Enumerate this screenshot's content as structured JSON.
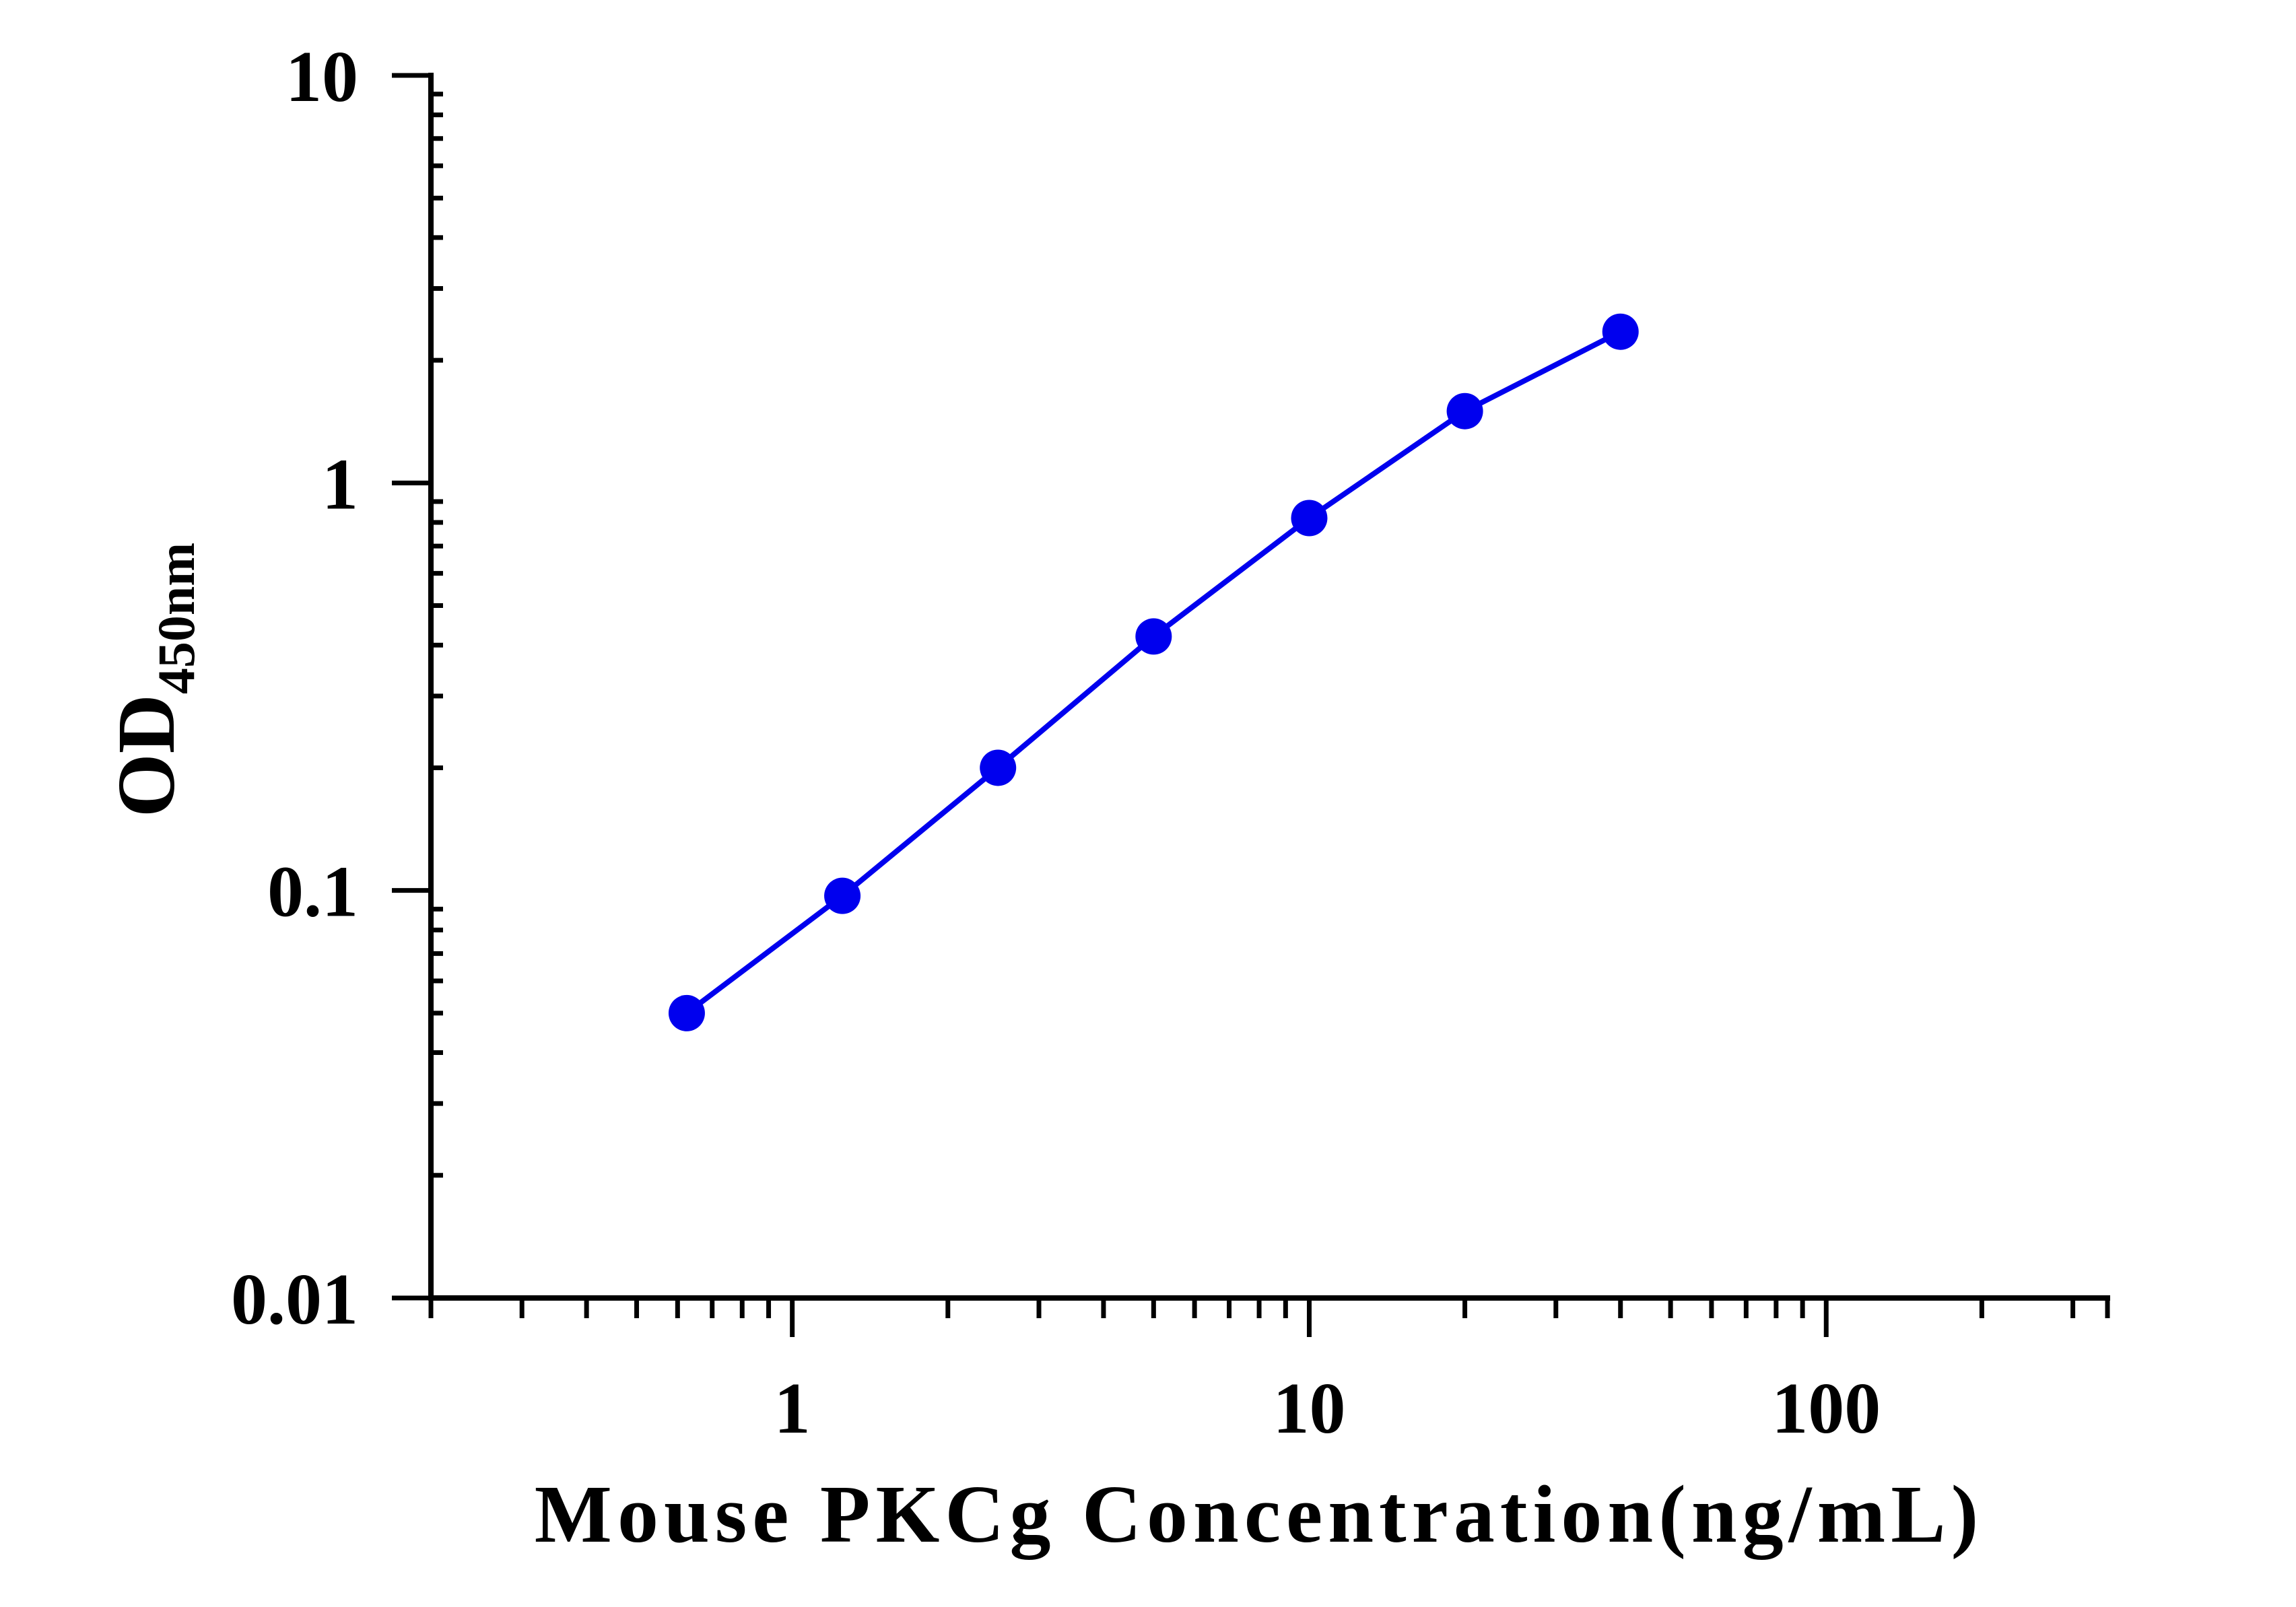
{
  "chart_data": {
    "type": "line",
    "title": "",
    "xlabel": "Mouse PKCg Concentration(ng/mL)",
    "ylabel": {
      "main": "OD",
      "subscript": "450nm"
    },
    "xscale": "log",
    "yscale": "log",
    "xlim": [
      0.2,
      350
    ],
    "ylim": [
      0.01,
      10
    ],
    "x_ticks": [
      {
        "value": 1,
        "label": "1"
      },
      {
        "value": 10,
        "label": "10"
      },
      {
        "value": 100,
        "label": "100"
      }
    ],
    "y_ticks": [
      {
        "value": 0.01,
        "label": "0.01"
      },
      {
        "value": 0.1,
        "label": "0.1"
      },
      {
        "value": 1,
        "label": "1"
      },
      {
        "value": 10,
        "label": "10"
      }
    ],
    "grid": false,
    "legend": "none",
    "series": [
      {
        "color": "#0000ee",
        "marker": "circle",
        "x": [
          0.625,
          1.25,
          2.5,
          5,
          10,
          20,
          40
        ],
        "y": [
          0.05,
          0.097,
          0.2,
          0.42,
          0.82,
          1.5,
          2.35
        ]
      }
    ]
  }
}
